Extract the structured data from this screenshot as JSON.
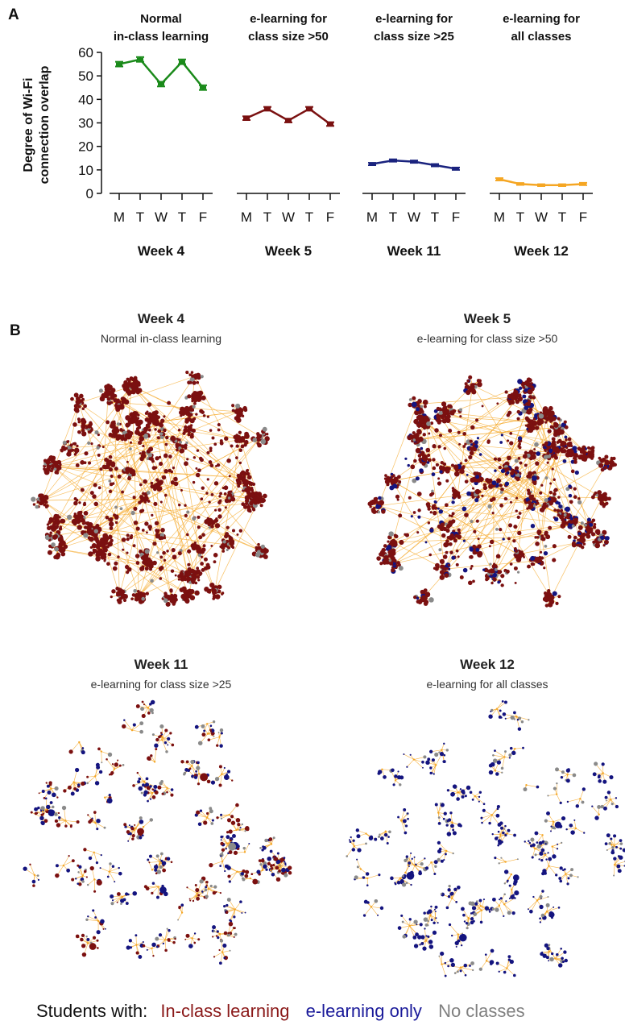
{
  "panel_a": {
    "label": "A",
    "chart_data": {
      "type": "line",
      "ylabel_line1": "Degree of Wi-Fi",
      "ylabel_line2": "connection overlap",
      "yticks": [
        "0",
        "10",
        "20",
        "30",
        "40",
        "50",
        "60"
      ],
      "ylim": [
        0,
        60
      ],
      "days": [
        "M",
        "T",
        "W",
        "T",
        "F"
      ],
      "series": [
        {
          "week": "Week 4",
          "condition_line1": "Normal",
          "condition_line2": "in-class learning",
          "color": "#1a8a1a",
          "values": [
            55,
            57,
            46.5,
            56,
            45
          ],
          "errors": [
            1,
            1,
            1,
            1,
            1
          ]
        },
        {
          "week": "Week 5",
          "condition_line1": "e-learning for",
          "condition_line2": "class size >50",
          "color": "#7a1010",
          "values": [
            32,
            36,
            31,
            36,
            29.5
          ],
          "errors": [
            0.8,
            0.8,
            0.8,
            0.8,
            0.8
          ]
        },
        {
          "week": "Week 11",
          "condition_line1": "e-learning for",
          "condition_line2": "class size >25",
          "color": "#1a237e",
          "values": [
            12.5,
            14,
            13.5,
            12,
            10.5
          ],
          "errors": [
            0.5,
            0.5,
            0.5,
            0.5,
            0.5
          ]
        },
        {
          "week": "Week 12",
          "condition_line1": "e-learning for",
          "condition_line2": "all classes",
          "color": "#f5a623",
          "values": [
            6,
            4,
            3.5,
            3.5,
            4
          ],
          "errors": [
            0.5,
            0.4,
            0.4,
            0.4,
            0.5
          ]
        }
      ]
    }
  },
  "panel_b": {
    "label": "B",
    "networks": [
      {
        "title": "Week 4",
        "subtitle": "Normal in-class learning"
      },
      {
        "title": "Week 5",
        "subtitle": "e-learning for class size >50"
      },
      {
        "title": "Week 11",
        "subtitle": "e-learning for class size >25"
      },
      {
        "title": "Week 12",
        "subtitle": "e-learning for all classes"
      }
    ]
  },
  "legend": {
    "prefix": "Students with:",
    "items": [
      {
        "label": "In-class learning",
        "color": "#8b1a1a"
      },
      {
        "label": "e-learning only",
        "color": "#1a1a9a"
      },
      {
        "label": "No classes",
        "color": "#808080"
      }
    ]
  }
}
